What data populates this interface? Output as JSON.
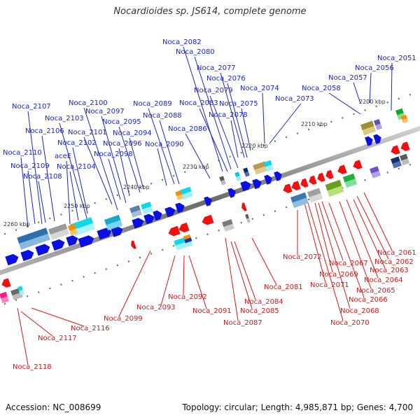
{
  "header": {
    "title": "Nocardioides sp. JS614, complete genome"
  },
  "footer": {
    "accession": "Accession: NC_008699",
    "summary": "Topology: circular; Length: 4,985,871 bp; Genes: 4,700"
  },
  "colors": {
    "top_labels": "#1a24c8",
    "bottom_labels": "#d01818",
    "forward_genes": "#0a10e0",
    "reverse_genes": "#f01010"
  },
  "ticks": [
    "2200 kbp",
    "2210 kbp",
    "2220 kbp",
    "2230 kbp",
    "2240 kbp",
    "2250 kbp",
    "2260 kbp"
  ],
  "top_labels": [
    "Noca_2051",
    "Noca_2056",
    "Noca_2057",
    "Noca_2058",
    "Noca_2073",
    "Noca_2074",
    "Noca_2075",
    "Noca_2076",
    "Noca_2077",
    "Noca_2078",
    "Noca_2079",
    "Noca_2080",
    "Noca_2082",
    "Noca_2083",
    "Noca_2086",
    "Noca_2088",
    "Noca_2089",
    "Noca_2090",
    "Noca_2094",
    "Noca_2095",
    "Noca_2096",
    "Noca_2097",
    "Noca_2098",
    "Noca_2100",
    "Noca_2101",
    "Noca_2102",
    "Noca_2103",
    "Noca_2104",
    "Noca_2106",
    "Noca_2107",
    "aceE",
    "Noca_2108",
    "Noca_2109",
    "Noca_2110"
  ],
  "bottom_labels": [
    "Noca_2061",
    "Noca_2062",
    "Noca_2063",
    "Noca_2064",
    "Noca_2065",
    "Noca_2066",
    "Noca_2067",
    "Noca_2068",
    "Noca_2069",
    "Noca_2070",
    "Noca_2071",
    "Noca_2072",
    "Noca_2081",
    "Noca_2084",
    "Noca_2085",
    "Noca_2087",
    "Noca_2091",
    "Noca_2092",
    "Noca_2093",
    "Noca_2099",
    "Noca_2116",
    "Noca_2117",
    "Noca_2118"
  ]
}
